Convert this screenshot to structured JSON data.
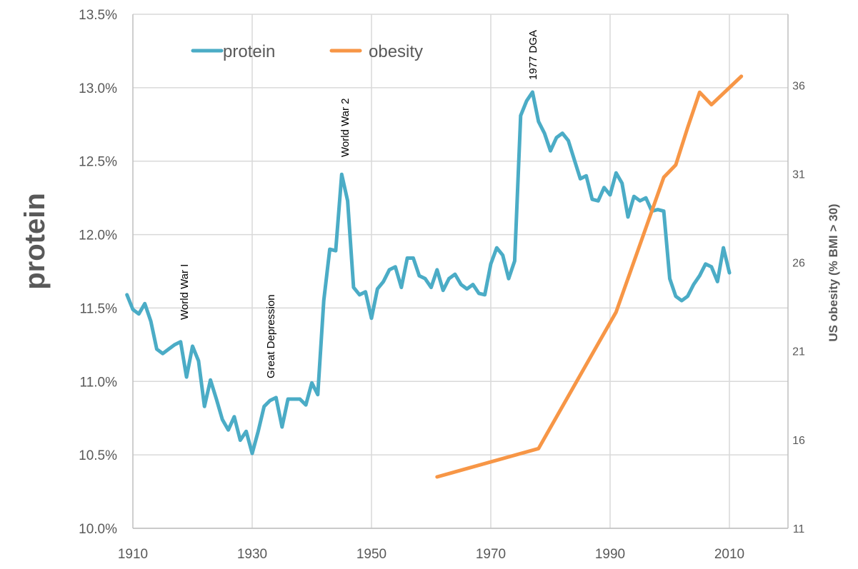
{
  "chart_data": {
    "type": "line",
    "title": "",
    "xlabel": "",
    "ylabel": "protein",
    "y2label": "US obesity (% BMI > 30)",
    "xlim": [
      1910,
      2020
    ],
    "ylim": [
      10.0,
      13.5
    ],
    "y2lim": [
      11,
      40
    ],
    "x_ticks": [
      1910,
      1930,
      1950,
      1970,
      1990,
      2010
    ],
    "x_tick_labels": [
      "1910",
      "1930",
      "1950",
      "1970",
      "1990",
      "2010"
    ],
    "y_ticks": [
      10.0,
      10.5,
      11.0,
      11.5,
      12.0,
      12.5,
      13.0,
      13.5
    ],
    "y_tick_labels": [
      "10.0%",
      "10.5%",
      "11.0%",
      "11.5%",
      "12.0%",
      "12.5%",
      "13.0%",
      "13.5%"
    ],
    "y2_ticks": [
      11,
      16,
      21,
      26,
      31,
      36
    ],
    "y2_tick_labels": [
      "11",
      "16",
      "21",
      "26",
      "31",
      "36"
    ],
    "grid": true,
    "legend": "top-left",
    "colors": {
      "protein": "#4BACC6",
      "obesity": "#F79646",
      "grid": "#D9D9D9",
      "text": "#595959"
    },
    "series": [
      {
        "name": "protein",
        "axis": "left",
        "x": [
          1909,
          1910,
          1911,
          1912,
          1913,
          1914,
          1915,
          1916,
          1917,
          1918,
          1919,
          1920,
          1921,
          1922,
          1923,
          1924,
          1925,
          1926,
          1927,
          1928,
          1929,
          1930,
          1931,
          1932,
          1933,
          1934,
          1935,
          1936,
          1937,
          1938,
          1939,
          1940,
          1941,
          1942,
          1943,
          1944,
          1945,
          1946,
          1947,
          1948,
          1949,
          1950,
          1951,
          1952,
          1953,
          1954,
          1955,
          1956,
          1957,
          1958,
          1959,
          1960,
          1961,
          1962,
          1963,
          1964,
          1965,
          1966,
          1967,
          1968,
          1969,
          1970,
          1971,
          1972,
          1973,
          1974,
          1975,
          1976,
          1977,
          1978,
          1979,
          1980,
          1981,
          1982,
          1983,
          1984,
          1985,
          1986,
          1987,
          1988,
          1989,
          1990,
          1991,
          1992,
          1993,
          1994,
          1995,
          1996,
          1997,
          1998,
          1999,
          2000,
          2001,
          2002,
          2003,
          2004,
          2005,
          2006,
          2007,
          2008,
          2009,
          2010
        ],
        "values": [
          11.59,
          11.49,
          11.46,
          11.53,
          11.41,
          11.22,
          11.19,
          11.22,
          11.25,
          11.27,
          11.03,
          11.24,
          11.14,
          10.83,
          11.01,
          10.88,
          10.74,
          10.67,
          10.76,
          10.6,
          10.66,
          10.51,
          10.66,
          10.83,
          10.87,
          10.89,
          10.69,
          10.88,
          10.88,
          10.88,
          10.84,
          10.99,
          10.91,
          11.55,
          11.9,
          11.89,
          12.41,
          12.23,
          11.64,
          11.59,
          11.61,
          11.43,
          11.63,
          11.68,
          11.76,
          11.78,
          11.64,
          11.84,
          11.84,
          11.72,
          11.7,
          11.64,
          11.76,
          11.62,
          11.7,
          11.73,
          11.66,
          11.63,
          11.66,
          11.6,
          11.59,
          11.8,
          11.91,
          11.86,
          11.7,
          11.82,
          12.81,
          12.91,
          12.97,
          12.77,
          12.69,
          12.57,
          12.66,
          12.69,
          12.64,
          12.51,
          12.38,
          12.4,
          12.24,
          12.23,
          12.32,
          12.27,
          12.42,
          12.35,
          12.12,
          12.26,
          12.23,
          12.25,
          12.16,
          12.17,
          12.16,
          11.7,
          11.58,
          11.55,
          11.58,
          11.66,
          11.72,
          11.8,
          11.78,
          11.68,
          11.91,
          11.74
        ]
      },
      {
        "name": "obesity",
        "axis": "right",
        "x": [
          1961,
          1978,
          1991,
          1999,
          2001,
          2003,
          2005,
          2007,
          2012
        ],
        "values": [
          13.9,
          15.5,
          23.2,
          30.8,
          31.5,
          33.6,
          35.6,
          34.9,
          36.5
        ]
      }
    ],
    "annotations": [
      {
        "text": "World War I",
        "x": 1918
      },
      {
        "text": "Great Depression",
        "x": 1932
      },
      {
        "text": "World War 2",
        "x": 1946
      },
      {
        "text": "1977 DGA",
        "x": 1977
      }
    ]
  }
}
